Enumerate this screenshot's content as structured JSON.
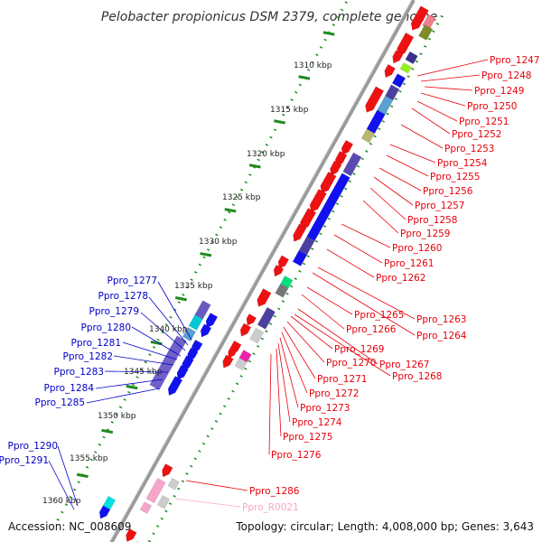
{
  "title": "Pelobacter propionicus DSM 2379, complete genome",
  "accession_text": "Accession: NC_008609",
  "summary_text": "Topology: circular; Length: 4,008,000 bp; Genes: 3,643",
  "colors": {
    "forward_label": "#e8000b",
    "reverse_label": "#0000c8",
    "rna_label": "#f4a6c8",
    "tick": "#1f8a1f",
    "backbone": "#9a9a9a"
  },
  "kbp_ticks": [
    "1310 kbp",
    "1315 kbp",
    "1320 kbp",
    "1325 kbp",
    "1330 kbp",
    "1335 kbp",
    "1340 kbp",
    "1345 kbp",
    "1350 kbp",
    "1355 kbp",
    "1360 kbp"
  ],
  "right_labels": [
    "Ppro_1247",
    "Ppro_1248",
    "Ppro_1249",
    "Ppro_1250",
    "Ppro_1251",
    "Ppro_1252",
    "Ppro_1253",
    "Ppro_1254",
    "Ppro_1255",
    "Ppro_1256",
    "Ppro_1257",
    "Ppro_1258",
    "Ppro_1259",
    "Ppro_1260",
    "Ppro_1261",
    "Ppro_1262",
    "Ppro_1263",
    "Ppro_1264"
  ],
  "lower_labels": [
    "Ppro_1265",
    "Ppro_1266",
    "Ppro_1267",
    "Ppro_1268",
    "Ppro_1269",
    "Ppro_1270",
    "Ppro_1271",
    "Ppro_1272",
    "Ppro_1273",
    "Ppro_1274",
    "Ppro_1275",
    "Ppro_1276"
  ],
  "left_labels": [
    "Ppro_1277",
    "Ppro_1278",
    "Ppro_1279",
    "Ppro_1280",
    "Ppro_1281",
    "Ppro_1282",
    "Ppro_1283",
    "Ppro_1284",
    "Ppro_1285",
    "Ppro_1290",
    "Ppro_1291"
  ],
  "bottom_labels": [
    "Ppro_1286",
    "Ppro_R0021"
  ]
}
